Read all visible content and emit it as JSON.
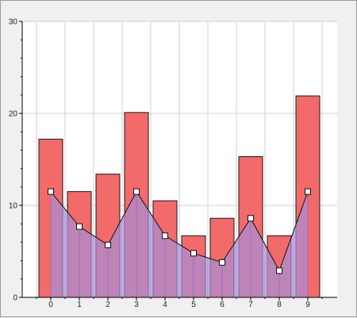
{
  "chart_data": {
    "type": "bar",
    "categories": [
      "0",
      "1",
      "2",
      "3",
      "4",
      "5",
      "6",
      "7",
      "8",
      "9"
    ],
    "series": [
      {
        "type": "bar",
        "values": [
          17.2,
          11.5,
          13.4,
          20.1,
          10.5,
          6.7,
          8.6,
          15.3,
          6.7,
          21.9
        ]
      },
      {
        "type": "area-line",
        "values": [
          11.5,
          7.7,
          5.7,
          11.5,
          6.7,
          4.8,
          3.8,
          8.6,
          2.9,
          11.5
        ]
      }
    ],
    "yticks": [
      "0",
      "10",
      "20",
      "30"
    ],
    "ylim": [
      0,
      30
    ],
    "title": "",
    "xlabel": "",
    "ylabel": "",
    "grid": true,
    "colors": {
      "bar_fill": "#f26a6a",
      "bar_stroke": "#1a1a1a",
      "area_fill": "#a98dd6",
      "area_fill_opacity": 0.72,
      "line_stroke": "#111111",
      "marker_fill": "#ffffff",
      "grid": "#d0d0d0",
      "plot_bg": "#ffffff"
    }
  }
}
